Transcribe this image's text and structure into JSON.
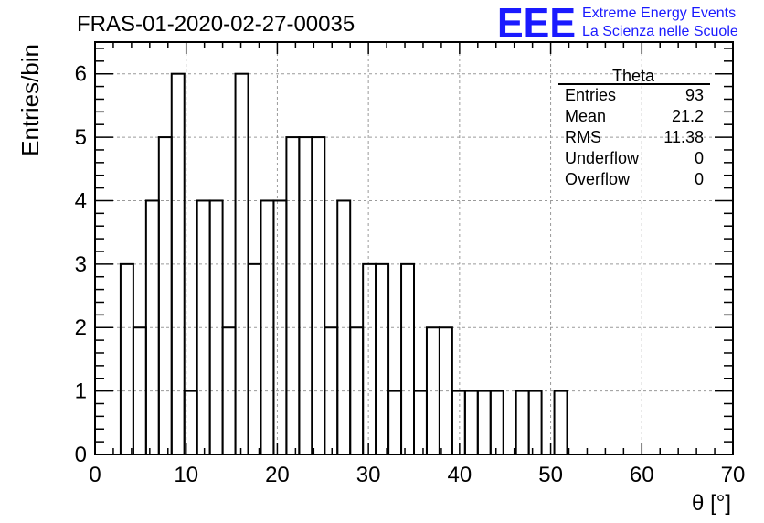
{
  "chart_data": {
    "type": "histogram",
    "title": "FRAS-01-2020-02-27-00035",
    "xlabel": "θ [°]",
    "ylabel": "Entries/bin",
    "xlim": [
      0,
      70
    ],
    "ylim": [
      0,
      6.5
    ],
    "x_ticks": [
      0,
      10,
      20,
      30,
      40,
      50,
      60,
      70
    ],
    "y_ticks": [
      0,
      1,
      2,
      3,
      4,
      5,
      6
    ],
    "grid": true,
    "bin_width": 1.4,
    "bins": [
      {
        "low": 2.8,
        "count": 3
      },
      {
        "low": 4.2,
        "count": 2
      },
      {
        "low": 5.6,
        "count": 4
      },
      {
        "low": 7.0,
        "count": 5
      },
      {
        "low": 8.4,
        "count": 6
      },
      {
        "low": 9.8,
        "count": 1
      },
      {
        "low": 11.2,
        "count": 4
      },
      {
        "low": 12.6,
        "count": 4
      },
      {
        "low": 14.0,
        "count": 2
      },
      {
        "low": 15.4,
        "count": 6
      },
      {
        "low": 16.8,
        "count": 3
      },
      {
        "low": 18.2,
        "count": 4
      },
      {
        "low": 19.6,
        "count": 4
      },
      {
        "low": 21.0,
        "count": 5
      },
      {
        "low": 22.4,
        "count": 5
      },
      {
        "low": 23.8,
        "count": 5
      },
      {
        "low": 25.2,
        "count": 2
      },
      {
        "low": 26.6,
        "count": 4
      },
      {
        "low": 28.0,
        "count": 2
      },
      {
        "low": 29.4,
        "count": 3
      },
      {
        "low": 30.8,
        "count": 3
      },
      {
        "low": 32.2,
        "count": 1
      },
      {
        "low": 33.6,
        "count": 3
      },
      {
        "low": 35.0,
        "count": 1
      },
      {
        "low": 36.4,
        "count": 2
      },
      {
        "low": 37.8,
        "count": 2
      },
      {
        "low": 39.2,
        "count": 1
      },
      {
        "low": 40.6,
        "count": 1
      },
      {
        "low": 42.0,
        "count": 1
      },
      {
        "low": 43.4,
        "count": 1
      },
      {
        "low": 44.8,
        "count": 0
      },
      {
        "low": 46.2,
        "count": 1
      },
      {
        "low": 47.6,
        "count": 1
      },
      {
        "low": 49.0,
        "count": 0
      },
      {
        "low": 50.4,
        "count": 1
      }
    ],
    "stats": {
      "name": "Theta",
      "rows": [
        {
          "label": "Entries",
          "value": "93"
        },
        {
          "label": "Mean",
          "value": "21.2"
        },
        {
          "label": "RMS",
          "value": "11.38"
        },
        {
          "label": "Underflow",
          "value": "0"
        },
        {
          "label": "Overflow",
          "value": "0"
        }
      ]
    }
  },
  "logo": {
    "mark": "EEE",
    "line1": "Extreme Energy Events",
    "line2": "La Scienza nelle Scuole",
    "color": "#1a1aff"
  },
  "colors": {
    "line": "#000000",
    "grid": "#9a9a9a",
    "logo": "#1a1aff"
  }
}
